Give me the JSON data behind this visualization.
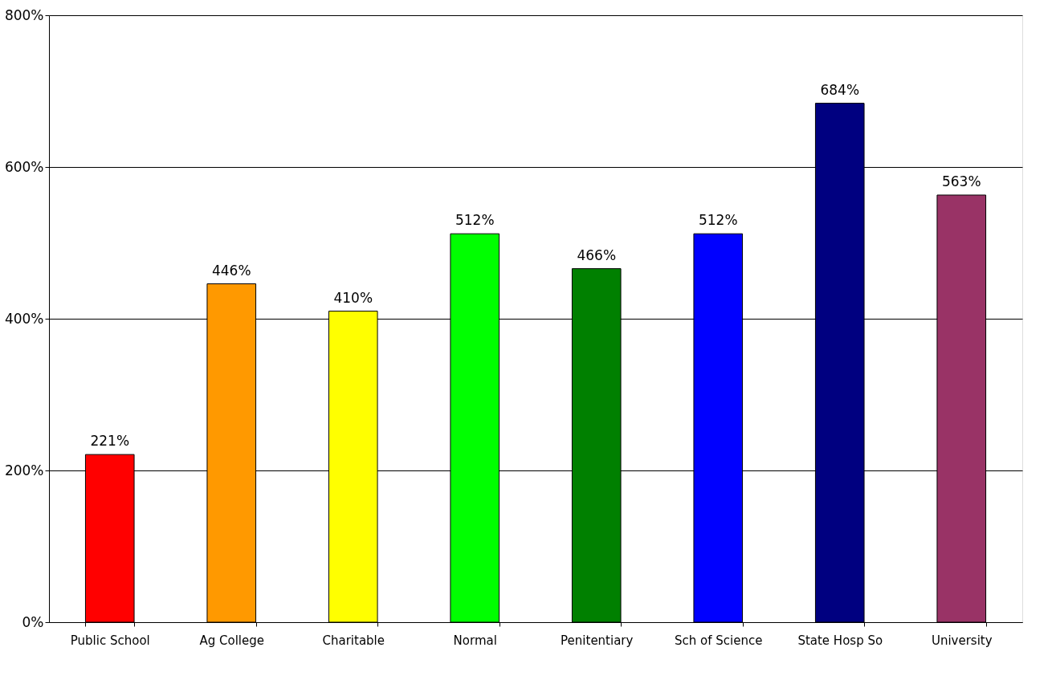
{
  "chart_data": {
    "type": "bar",
    "categories": [
      "Public School",
      "Ag College",
      "Charitable",
      "Normal",
      "Penitentiary",
      "Sch of Science",
      "State Hosp So",
      "University"
    ],
    "values": [
      221,
      446,
      410,
      512,
      466,
      512,
      684,
      563
    ],
    "colors": [
      "#ff0000",
      "#ff9900",
      "#ffff00",
      "#00ff00",
      "#008000",
      "#0000ff",
      "#000080",
      "#993366"
    ],
    "value_labels": [
      "221%",
      "446%",
      "410%",
      "512%",
      "466%",
      "512%",
      "684%",
      "563%"
    ],
    "ylim": [
      0,
      800
    ],
    "yticks": [
      {
        "value": 0,
        "label": "0%"
      },
      {
        "value": 200,
        "label": "200%"
      },
      {
        "value": 400,
        "label": "400%"
      },
      {
        "value": 600,
        "label": "600%"
      },
      {
        "value": 800,
        "label": "800%"
      }
    ],
    "grid": "y"
  }
}
